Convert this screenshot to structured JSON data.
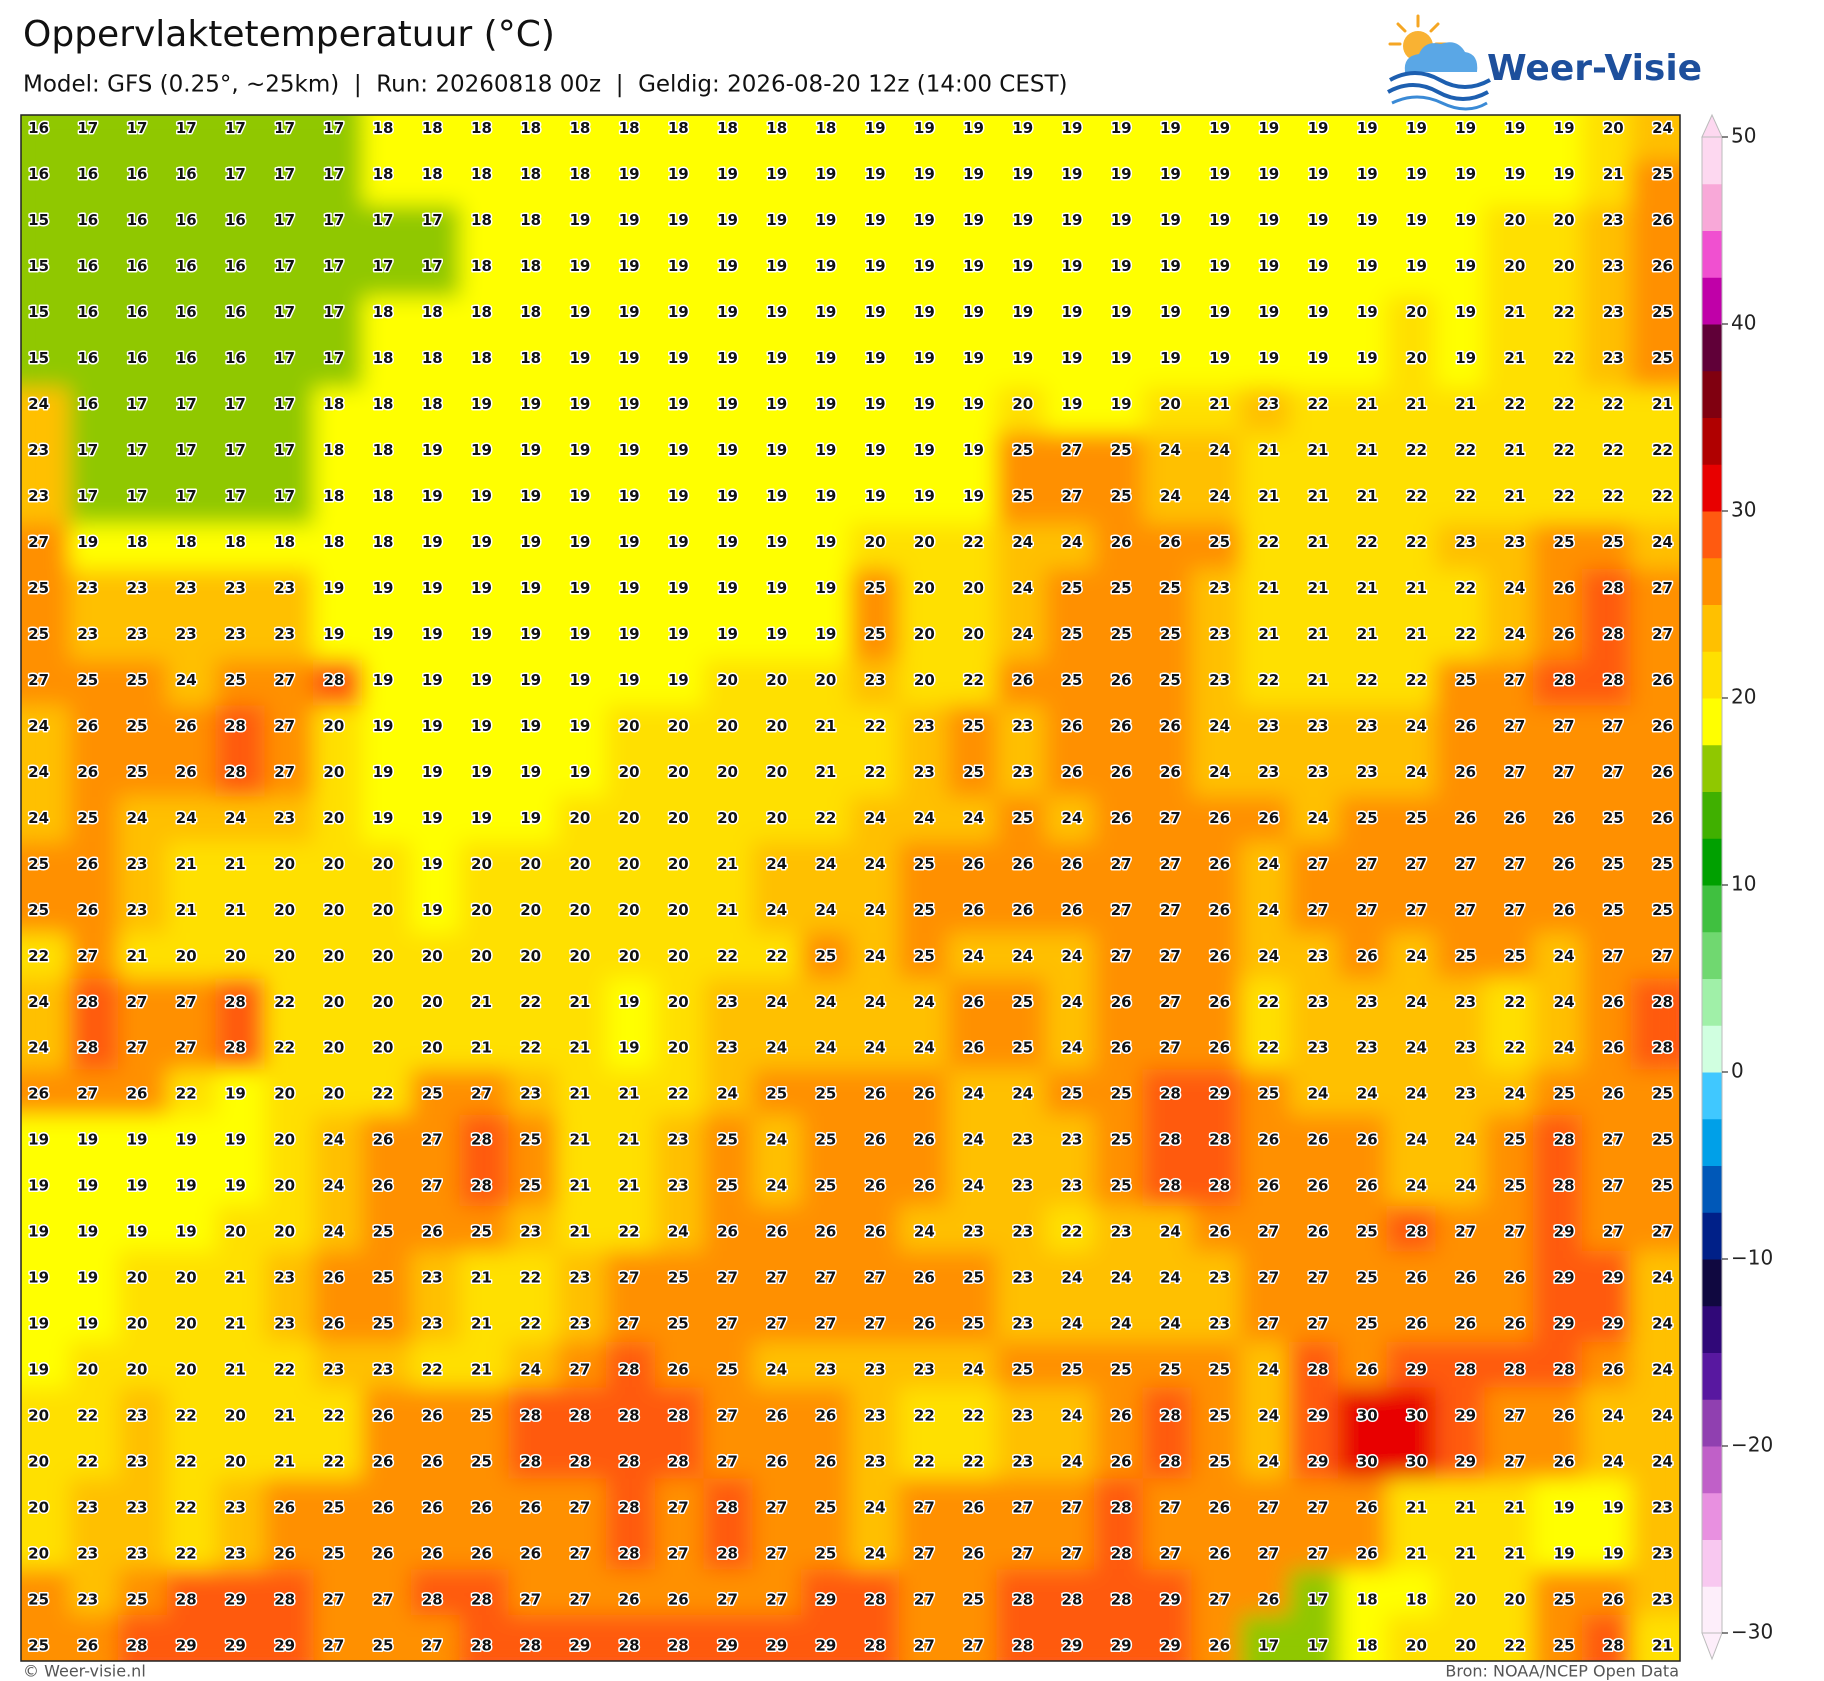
{
  "header": {
    "title": "Oppervlaktetemperatuur (°C)",
    "subtitle": "Model: GFS (0.25°, ~25km)  |  Run: 20260818 00z  |  Geldig: 2026-08-20 12z (14:00 CEST)",
    "logo": "Weer-Visie"
  },
  "chart_data": {
    "type": "heatmap",
    "values": [
      [
        16,
        17,
        17,
        17,
        17,
        17,
        17,
        18,
        18,
        18,
        18,
        18,
        18,
        18,
        18,
        18,
        18,
        19,
        19,
        19,
        19,
        19,
        19,
        19,
        19,
        19,
        19,
        19,
        19,
        19,
        19,
        19,
        20,
        24
      ],
      [
        16,
        16,
        16,
        16,
        17,
        17,
        17,
        18,
        18,
        18,
        18,
        18,
        19,
        19,
        19,
        19,
        19,
        19,
        19,
        19,
        19,
        19,
        19,
        19,
        19,
        19,
        19,
        19,
        19,
        19,
        19,
        19,
        21,
        25
      ],
      [
        15,
        16,
        16,
        16,
        16,
        17,
        17,
        17,
        17,
        18,
        18,
        19,
        19,
        19,
        19,
        19,
        19,
        19,
        19,
        19,
        19,
        19,
        19,
        19,
        19,
        19,
        19,
        19,
        19,
        19,
        20,
        20,
        23,
        26
      ],
      [
        15,
        16,
        16,
        16,
        16,
        17,
        17,
        17,
        17,
        18,
        18,
        19,
        19,
        19,
        19,
        19,
        19,
        19,
        19,
        19,
        19,
        19,
        19,
        19,
        19,
        19,
        19,
        19,
        19,
        19,
        20,
        20,
        23,
        26
      ],
      [
        15,
        16,
        16,
        16,
        16,
        17,
        17,
        18,
        18,
        18,
        18,
        19,
        19,
        19,
        19,
        19,
        19,
        19,
        19,
        19,
        19,
        19,
        19,
        19,
        19,
        19,
        19,
        19,
        20,
        19,
        21,
        22,
        23,
        25
      ],
      [
        15,
        16,
        16,
        16,
        16,
        17,
        17,
        18,
        18,
        18,
        18,
        19,
        19,
        19,
        19,
        19,
        19,
        19,
        19,
        19,
        19,
        19,
        19,
        19,
        19,
        19,
        19,
        19,
        20,
        19,
        21,
        22,
        23,
        25
      ],
      [
        24,
        16,
        17,
        17,
        17,
        17,
        18,
        18,
        18,
        19,
        19,
        19,
        19,
        19,
        19,
        19,
        19,
        19,
        19,
        19,
        20,
        19,
        19,
        20,
        21,
        23,
        22,
        21,
        21,
        21,
        22,
        22,
        22,
        21
      ],
      [
        23,
        17,
        17,
        17,
        17,
        17,
        18,
        18,
        19,
        19,
        19,
        19,
        19,
        19,
        19,
        19,
        19,
        19,
        19,
        19,
        25,
        27,
        25,
        24,
        24,
        21,
        21,
        21,
        22,
        22,
        21,
        22,
        22,
        22
      ],
      [
        23,
        17,
        17,
        17,
        17,
        17,
        18,
        18,
        19,
        19,
        19,
        19,
        19,
        19,
        19,
        19,
        19,
        19,
        19,
        19,
        25,
        27,
        25,
        24,
        24,
        21,
        21,
        21,
        22,
        22,
        21,
        22,
        22,
        22
      ],
      [
        27,
        19,
        18,
        18,
        18,
        18,
        18,
        18,
        19,
        19,
        19,
        19,
        19,
        19,
        19,
        19,
        19,
        20,
        20,
        22,
        24,
        24,
        26,
        26,
        25,
        22,
        21,
        22,
        22,
        23,
        23,
        25,
        25,
        24
      ],
      [
        25,
        23,
        23,
        23,
        23,
        23,
        19,
        19,
        19,
        19,
        19,
        19,
        19,
        19,
        19,
        19,
        19,
        25,
        20,
        20,
        24,
        25,
        25,
        25,
        23,
        21,
        21,
        21,
        21,
        22,
        24,
        26,
        28,
        27
      ],
      [
        25,
        23,
        23,
        23,
        23,
        23,
        19,
        19,
        19,
        19,
        19,
        19,
        19,
        19,
        19,
        19,
        19,
        25,
        20,
        20,
        24,
        25,
        25,
        25,
        23,
        21,
        21,
        21,
        21,
        22,
        24,
        26,
        28,
        27
      ],
      [
        27,
        25,
        25,
        24,
        25,
        27,
        28,
        19,
        19,
        19,
        19,
        19,
        19,
        19,
        20,
        20,
        20,
        23,
        20,
        22,
        26,
        25,
        26,
        25,
        23,
        22,
        21,
        22,
        22,
        25,
        27,
        28,
        28,
        26
      ],
      [
        24,
        26,
        25,
        26,
        28,
        27,
        20,
        19,
        19,
        19,
        19,
        19,
        20,
        20,
        20,
        20,
        21,
        22,
        23,
        25,
        23,
        26,
        26,
        26,
        24,
        23,
        23,
        23,
        24,
        26,
        27,
        27,
        27,
        26
      ],
      [
        24,
        26,
        25,
        26,
        28,
        27,
        20,
        19,
        19,
        19,
        19,
        19,
        20,
        20,
        20,
        20,
        21,
        22,
        23,
        25,
        23,
        26,
        26,
        26,
        24,
        23,
        23,
        23,
        24,
        26,
        27,
        27,
        27,
        26
      ],
      [
        24,
        25,
        24,
        24,
        24,
        23,
        20,
        19,
        19,
        19,
        19,
        20,
        20,
        20,
        20,
        20,
        22,
        24,
        24,
        24,
        25,
        24,
        26,
        27,
        26,
        26,
        24,
        25,
        25,
        26,
        26,
        26,
        25,
        26
      ],
      [
        25,
        26,
        23,
        21,
        21,
        20,
        20,
        20,
        19,
        20,
        20,
        20,
        20,
        20,
        21,
        24,
        24,
        24,
        25,
        26,
        26,
        26,
        27,
        27,
        26,
        24,
        27,
        27,
        27,
        27,
        27,
        26,
        25,
        25
      ],
      [
        25,
        26,
        23,
        21,
        21,
        20,
        20,
        20,
        19,
        20,
        20,
        20,
        20,
        20,
        21,
        24,
        24,
        24,
        25,
        26,
        26,
        26,
        27,
        27,
        26,
        24,
        27,
        27,
        27,
        27,
        27,
        26,
        25,
        25
      ],
      [
        22,
        27,
        21,
        20,
        20,
        20,
        20,
        20,
        20,
        20,
        20,
        20,
        20,
        20,
        22,
        22,
        25,
        24,
        25,
        24,
        24,
        24,
        27,
        27,
        26,
        24,
        23,
        26,
        24,
        25,
        25,
        24,
        27,
        27
      ],
      [
        24,
        28,
        27,
        27,
        28,
        22,
        20,
        20,
        20,
        21,
        22,
        21,
        19,
        20,
        23,
        24,
        24,
        24,
        24,
        26,
        25,
        24,
        26,
        27,
        26,
        22,
        23,
        23,
        24,
        23,
        22,
        24,
        26,
        28
      ],
      [
        24,
        28,
        27,
        27,
        28,
        22,
        20,
        20,
        20,
        21,
        22,
        21,
        19,
        20,
        23,
        24,
        24,
        24,
        24,
        26,
        25,
        24,
        26,
        27,
        26,
        22,
        23,
        23,
        24,
        23,
        22,
        24,
        26,
        28
      ],
      [
        26,
        27,
        26,
        22,
        19,
        20,
        20,
        22,
        25,
        27,
        23,
        21,
        21,
        22,
        24,
        25,
        25,
        26,
        26,
        24,
        24,
        25,
        25,
        28,
        29,
        25,
        24,
        24,
        24,
        23,
        24,
        25,
        26,
        25
      ],
      [
        19,
        19,
        19,
        19,
        19,
        20,
        24,
        26,
        27,
        28,
        25,
        21,
        21,
        23,
        25,
        24,
        25,
        26,
        26,
        24,
        23,
        23,
        25,
        28,
        28,
        26,
        26,
        26,
        24,
        24,
        25,
        28,
        27,
        25
      ],
      [
        19,
        19,
        19,
        19,
        19,
        20,
        24,
        26,
        27,
        28,
        25,
        21,
        21,
        23,
        25,
        24,
        25,
        26,
        26,
        24,
        23,
        23,
        25,
        28,
        28,
        26,
        26,
        26,
        24,
        24,
        25,
        28,
        27,
        25
      ],
      [
        19,
        19,
        19,
        19,
        20,
        20,
        24,
        25,
        26,
        25,
        23,
        21,
        22,
        24,
        26,
        26,
        26,
        26,
        24,
        23,
        23,
        22,
        23,
        24,
        26,
        27,
        26,
        25,
        28,
        27,
        27,
        29,
        27,
        27
      ],
      [
        19,
        19,
        20,
        20,
        21,
        23,
        26,
        25,
        23,
        21,
        22,
        23,
        27,
        25,
        27,
        27,
        27,
        27,
        26,
        25,
        23,
        24,
        24,
        24,
        23,
        27,
        27,
        25,
        26,
        26,
        26,
        29,
        29,
        24
      ],
      [
        19,
        19,
        20,
        20,
        21,
        23,
        26,
        25,
        23,
        21,
        22,
        23,
        27,
        25,
        27,
        27,
        27,
        27,
        26,
        25,
        23,
        24,
        24,
        24,
        23,
        27,
        27,
        25,
        26,
        26,
        26,
        29,
        29,
        24
      ],
      [
        19,
        20,
        20,
        20,
        21,
        22,
        23,
        23,
        22,
        21,
        24,
        27,
        28,
        26,
        25,
        24,
        23,
        23,
        23,
        24,
        25,
        25,
        25,
        25,
        25,
        24,
        28,
        26,
        29,
        28,
        28,
        28,
        26,
        24
      ],
      [
        20,
        22,
        23,
        22,
        20,
        21,
        22,
        26,
        26,
        25,
        28,
        28,
        28,
        28,
        27,
        26,
        26,
        23,
        22,
        22,
        23,
        24,
        26,
        28,
        25,
        24,
        29,
        30,
        30,
        29,
        27,
        26,
        24,
        24
      ],
      [
        20,
        22,
        23,
        22,
        20,
        21,
        22,
        26,
        26,
        25,
        28,
        28,
        28,
        28,
        27,
        26,
        26,
        23,
        22,
        22,
        23,
        24,
        26,
        28,
        25,
        24,
        29,
        30,
        30,
        29,
        27,
        26,
        24,
        24
      ],
      [
        20,
        23,
        23,
        22,
        23,
        26,
        25,
        26,
        26,
        26,
        26,
        27,
        28,
        27,
        28,
        27,
        25,
        24,
        27,
        26,
        27,
        27,
        28,
        27,
        26,
        27,
        27,
        26,
        21,
        21,
        21,
        19,
        19,
        23
      ],
      [
        20,
        23,
        23,
        22,
        23,
        26,
        25,
        26,
        26,
        26,
        26,
        27,
        28,
        27,
        28,
        27,
        25,
        24,
        27,
        26,
        27,
        27,
        28,
        27,
        26,
        27,
        27,
        26,
        21,
        21,
        21,
        19,
        19,
        23
      ],
      [
        25,
        23,
        25,
        28,
        29,
        28,
        27,
        27,
        28,
        28,
        27,
        27,
        26,
        26,
        27,
        27,
        29,
        28,
        27,
        25,
        28,
        28,
        28,
        29,
        27,
        26,
        17,
        18,
        18,
        20,
        20,
        25,
        26,
        23
      ],
      [
        25,
        26,
        28,
        29,
        29,
        29,
        27,
        25,
        27,
        28,
        28,
        29,
        28,
        28,
        29,
        29,
        29,
        28,
        27,
        27,
        28,
        29,
        29,
        29,
        26,
        17,
        17,
        18,
        20,
        20,
        22,
        25,
        28,
        21
      ]
    ],
    "colorbar_lim": [
      -30,
      50
    ],
    "colorbar_ticks": [
      50,
      40,
      30,
      20,
      10,
      0,
      {
        "value": -10,
        "label": "−10"
      },
      {
        "value": -20,
        "label": "−20"
      },
      {
        "value": -30,
        "label": "−30"
      }
    ],
    "colors": [
      "#fdeefa",
      "#f8c8f0",
      "#e890e0",
      "#c060c8",
      "#9040b0",
      "#5818a0",
      "#300878",
      "#100840",
      "#002088",
      "#0058b8",
      "#00a0e8",
      "#40c8ff",
      "#d0ffe0",
      "#a0f0a8",
      "#70d870",
      "#40c040",
      "#00a000",
      "#40b000",
      "#90c800",
      "#ffff00",
      "#ffe000",
      "#ffc000",
      "#ff9000",
      "#ff5a10",
      "#e80000",
      "#b00000",
      "#800010",
      "#600038",
      "#c000a8",
      "#f050d0",
      "#f8a8d8",
      "#fdd8f0"
    ]
  },
  "footer": {
    "left": "© Weer-visie.nl",
    "right": "Bron: NOAA/NCEP Open Data"
  }
}
